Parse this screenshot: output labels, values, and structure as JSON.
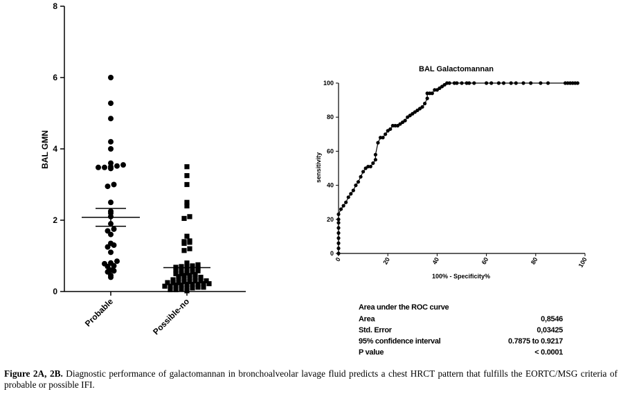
{
  "chart_data": [
    {
      "type": "scatter",
      "ylabel": "BAL GMN",
      "ylim": [
        0,
        8
      ],
      "yticks": [
        "0",
        "2",
        "4",
        "6",
        "8"
      ],
      "categories": [
        "Probable",
        "Possible-no"
      ],
      "groups": [
        {
          "name": "Probable",
          "marker": "circle",
          "mean": 2.08,
          "sem_upper": 2.33,
          "sem_lower": 1.83,
          "points": [
            6.0,
            5.28,
            4.85,
            4.2,
            4.0,
            3.6,
            3.55,
            3.52,
            3.5,
            3.48,
            3.48,
            3.45,
            3.0,
            2.95,
            2.5,
            2.25,
            2.2,
            2.1,
            1.9,
            1.75,
            1.7,
            1.6,
            1.35,
            1.3,
            1.25,
            1.1,
            0.85,
            0.8,
            0.78,
            0.72,
            0.7,
            0.6,
            0.58,
            0.55,
            0.45,
            0.4
          ]
        },
        {
          "name": "Possible-no",
          "marker": "square",
          "mean": 0.67,
          "points": [
            3.5,
            3.25,
            3.0,
            2.5,
            2.4,
            2.1,
            2.05,
            1.55,
            1.42,
            1.4,
            1.38,
            1.35,
            1.2,
            1.15,
            0.8,
            0.75,
            0.72,
            0.7,
            0.7,
            0.68,
            0.65,
            0.65,
            0.62,
            0.6,
            0.6,
            0.58,
            0.55,
            0.52,
            0.5,
            0.5,
            0.48,
            0.45,
            0.45,
            0.42,
            0.4,
            0.4,
            0.38,
            0.35,
            0.35,
            0.33,
            0.3,
            0.3,
            0.3,
            0.28,
            0.28,
            0.25,
            0.25,
            0.25,
            0.22,
            0.22,
            0.2,
            0.2,
            0.2,
            0.18,
            0.18,
            0.15,
            0.15,
            0.12,
            0.12,
            0.1,
            0.1,
            0.08,
            0.05,
            0.05,
            0.02
          ]
        }
      ]
    },
    {
      "type": "line",
      "title": "BAL Galactomannan",
      "xlabel": "100% - Specificity%",
      "ylabel": "sensitivity",
      "xlim": [
        0,
        100
      ],
      "ylim": [
        0,
        100
      ],
      "xticks": [
        "0",
        "20",
        "40",
        "60",
        "80",
        "100"
      ],
      "yticks": [
        "0",
        "20",
        "40",
        "60",
        "80",
        "100"
      ],
      "x": [
        0,
        0,
        0,
        0,
        0,
        0,
        0,
        0,
        0,
        1,
        2,
        3,
        4,
        5,
        6,
        7,
        8,
        9,
        10,
        11,
        12,
        13,
        14,
        15,
        15,
        16,
        17,
        18,
        19,
        20,
        21,
        22,
        23,
        24,
        25,
        26,
        27,
        28,
        29,
        30,
        31,
        32,
        33,
        34,
        35,
        36,
        36,
        37,
        38,
        39,
        40,
        41,
        42,
        43,
        44,
        45,
        47,
        48,
        50,
        52,
        53,
        55,
        60,
        62,
        65,
        67,
        70,
        72,
        75,
        78,
        82,
        85,
        92,
        93,
        94,
        95,
        96,
        97
      ],
      "y": [
        0,
        3,
        6,
        9,
        12,
        15,
        18,
        20,
        23,
        26,
        28,
        30,
        33,
        35,
        37,
        40,
        42,
        45,
        48,
        50,
        51,
        51,
        53,
        55,
        58,
        65,
        68,
        68,
        70,
        72,
        73,
        75,
        75,
        75,
        76,
        77,
        78,
        80,
        81,
        82,
        83,
        84,
        85,
        86,
        88,
        91,
        94,
        94,
        94,
        96,
        96,
        97,
        98,
        99,
        100,
        100,
        100,
        100,
        100,
        100,
        100,
        100,
        100,
        100,
        100,
        100,
        100,
        100,
        100,
        100,
        100,
        100,
        100,
        100,
        100,
        100,
        100,
        100
      ]
    }
  ],
  "stats": {
    "header": "Area under the ROC curve",
    "rows": [
      {
        "label": "Area",
        "value": "0,8546"
      },
      {
        "label": "Std. Error",
        "value": "0,03425"
      },
      {
        "label": "95% confidence interval",
        "value": "0.7875 to 0.9217"
      },
      {
        "label": "P value",
        "value": "< 0.0001"
      }
    ]
  },
  "caption": {
    "bold": "Figure 2A, 2B.",
    "text": " Diagnostic performance of galactomannan in bronchoalveolar lavage fluid predicts a chest HRCT pattern that fulfills the EORTC/MSG criteria of probable or possible IFI."
  }
}
